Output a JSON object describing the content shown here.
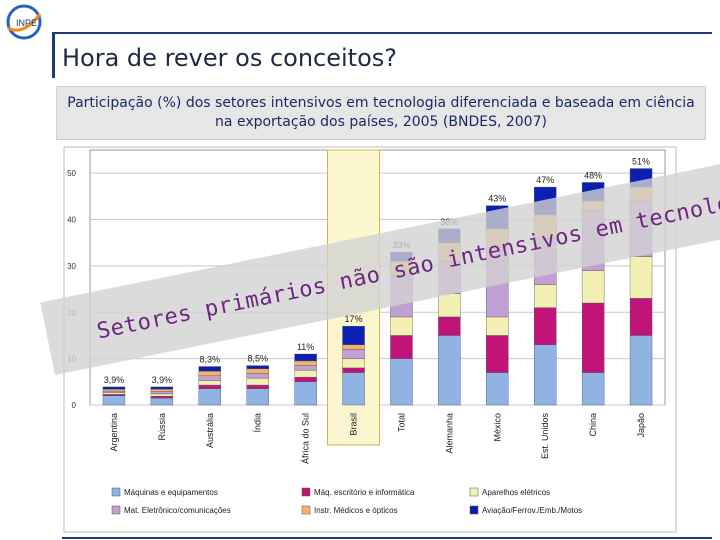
{
  "header": {
    "title": "Hora de rever os conceitos?",
    "caption": "Participação (%) dos setores intensivos em tecnologia diferenciada e baseada em ciência na exportação dos países, 2005 (BNDES, 2007)"
  },
  "logo": {
    "text": "INPE"
  },
  "overlay": {
    "text": "Setores primários não são intensivos em tecnologia (será?)"
  },
  "chart_data": {
    "type": "bar",
    "stacked": true,
    "categories": [
      "Argentina",
      "Rússia",
      "Austrália",
      "Índia",
      "África do Sul",
      "Brasil",
      "Total",
      "Alemanha",
      "México",
      "Est. Unidos",
      "China",
      "Japão"
    ],
    "totals_labels": [
      "3,9%",
      "3,9%",
      "8,3%",
      "8,5%",
      "11%",
      "17%",
      "33%",
      "38%",
      "43%",
      "47%",
      "48%",
      "51%"
    ],
    "ylim": [
      0,
      55
    ],
    "yticks": [
      0,
      10,
      20,
      30,
      40,
      50
    ],
    "grid": true,
    "highlighted_category": "Brasil",
    "legend_position": "bottom",
    "series": [
      {
        "name": "Máquinas e equipamentos",
        "color": "#8fb4e3",
        "values": [
          2.0,
          1.5,
          3.5,
          3.5,
          5.0,
          7.0,
          10.0,
          15.0,
          7.0,
          13.0,
          7.0,
          15.0
        ]
      },
      {
        "name": "Máq. escritório e informática",
        "color": "#c0147a",
        "values": [
          0.3,
          0.4,
          0.8,
          0.8,
          1.0,
          1.0,
          5.0,
          4.0,
          8.0,
          8.0,
          15.0,
          8.0
        ]
      },
      {
        "name": "Aparelhos elétricos",
        "color": "#f2f0b2",
        "values": [
          0.4,
          0.5,
          1.0,
          1.5,
          1.5,
          2.0,
          4.0,
          5.0,
          4.0,
          5.0,
          7.0,
          9.0
        ]
      },
      {
        "name": "Mat. Eletrônico/comunicações",
        "color": "#c1a0d6",
        "values": [
          0.3,
          0.5,
          1.0,
          1.0,
          1.0,
          2.0,
          9.0,
          7.0,
          15.0,
          10.0,
          13.0,
          12.0
        ]
      },
      {
        "name": "Instr. Médicos e ópticos",
        "color": "#f7b267",
        "values": [
          0.4,
          0.5,
          1.0,
          1.0,
          1.0,
          1.0,
          3.0,
          4.0,
          4.0,
          5.0,
          2.0,
          3.0
        ]
      },
      {
        "name": "Aviação/Ferrov./Emb./Motos",
        "color": "#0b1fb0",
        "values": [
          0.5,
          0.5,
          1.0,
          0.7,
          1.5,
          4.0,
          2.0,
          3.0,
          5.0,
          6.0,
          4.0,
          4.0
        ]
      }
    ]
  }
}
